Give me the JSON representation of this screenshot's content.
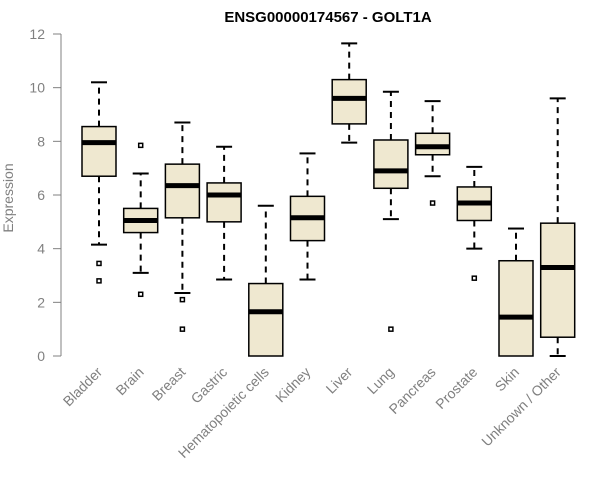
{
  "chart_data": {
    "type": "boxplot",
    "title": "ENSG00000174567 - GOLT1A",
    "xlabel": "",
    "ylabel": "Expression",
    "ylim": [
      0,
      12
    ],
    "yticks": [
      0,
      2,
      4,
      6,
      8,
      10,
      12
    ],
    "colors": {
      "box_fill": "#efe8d0",
      "stroke": "#000000",
      "axis": "#808080"
    },
    "categories": [
      "Bladder",
      "Brain",
      "Breast",
      "Gastric",
      "Hematopoietic cells",
      "Kidney",
      "Liver",
      "Lung",
      "Pancreas",
      "Prostate",
      "Skin",
      "Unknown / Other"
    ],
    "boxes": [
      {
        "min": 4.15,
        "q1": 6.7,
        "median": 7.95,
        "q3": 8.55,
        "max": 10.2,
        "outliers": [
          3.45,
          2.8
        ]
      },
      {
        "min": 3.1,
        "q1": 4.6,
        "median": 5.05,
        "q3": 5.5,
        "max": 6.8,
        "outliers": [
          7.85,
          2.3
        ]
      },
      {
        "min": 2.35,
        "q1": 5.15,
        "median": 6.35,
        "q3": 7.15,
        "max": 8.7,
        "outliers": [
          2.1,
          1.0
        ]
      },
      {
        "min": 2.85,
        "q1": 5.0,
        "median": 6.0,
        "q3": 6.45,
        "max": 7.8,
        "outliers": []
      },
      {
        "min": 0.0,
        "q1": 0.0,
        "median": 1.65,
        "q3": 2.7,
        "max": 5.6,
        "outliers": []
      },
      {
        "min": 2.85,
        "q1": 4.3,
        "median": 5.15,
        "q3": 5.95,
        "max": 7.55,
        "outliers": []
      },
      {
        "min": 7.95,
        "q1": 8.65,
        "median": 9.6,
        "q3": 10.3,
        "max": 11.65,
        "outliers": []
      },
      {
        "min": 5.1,
        "q1": 6.25,
        "median": 6.9,
        "q3": 8.05,
        "max": 9.85,
        "outliers": [
          1.0
        ]
      },
      {
        "min": 6.7,
        "q1": 7.5,
        "median": 7.8,
        "q3": 8.3,
        "max": 9.5,
        "outliers": [
          5.7
        ]
      },
      {
        "min": 4.0,
        "q1": 5.05,
        "median": 5.7,
        "q3": 6.3,
        "max": 7.05,
        "outliers": [
          2.9
        ]
      },
      {
        "min": 0.0,
        "q1": 0.0,
        "median": 1.45,
        "q3": 3.55,
        "max": 4.75,
        "outliers": []
      },
      {
        "min": 0.0,
        "q1": 0.7,
        "median": 3.3,
        "q3": 4.95,
        "max": 9.6,
        "outliers": []
      }
    ]
  }
}
